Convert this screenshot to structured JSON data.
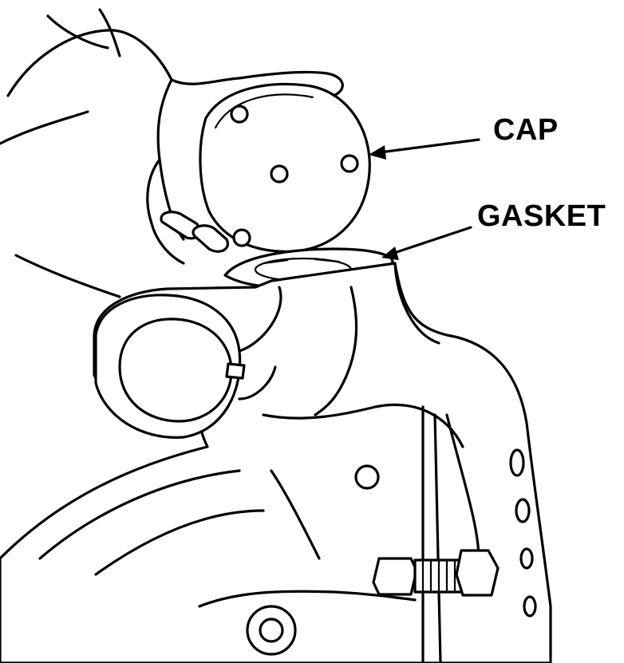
{
  "callouts": {
    "cap": "CAP",
    "gasket": "GASKET"
  },
  "colors": {
    "ink": "#000000",
    "paper": "#ffffff"
  }
}
